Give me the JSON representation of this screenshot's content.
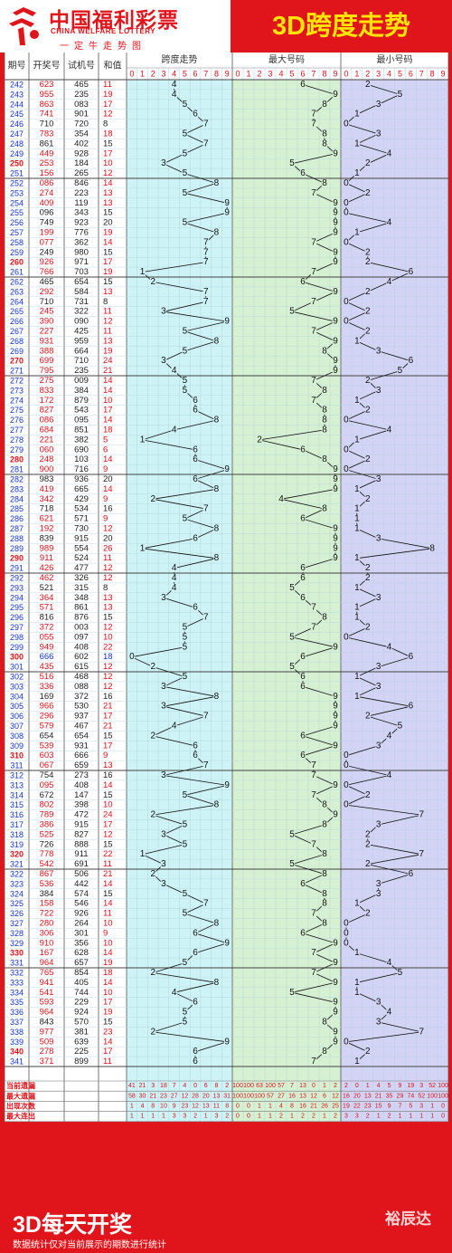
{
  "header": {
    "logo_cn": "中国福利彩票",
    "logo_en": "CHINA WELFARE LOTTERY",
    "logo_motto": "一定牛走势图",
    "title": "3D跨度走势"
  },
  "table": {
    "col_headers": [
      "期号",
      "开奖号",
      "试机号",
      "和值"
    ],
    "sections": [
      "跨度走势",
      "最大号码",
      "最小号码"
    ],
    "digits": [
      "0",
      "1",
      "2",
      "3",
      "4",
      "5",
      "6",
      "7",
      "8",
      "9"
    ]
  },
  "chart_data": {
    "type": "table",
    "colors": {
      "page": "#e0141b",
      "span_bg": "#cdf3f6",
      "max_bg": "#d6f1d2",
      "min_bg": "#d3d3f5",
      "grid": "#b5d4dc",
      "red_text": "#d8141b",
      "blue_text": "#1636c8"
    },
    "rows": [
      {
        "id": "242",
        "draw": "623",
        "test": "465",
        "sum": "11",
        "span": 4,
        "max": 6,
        "min": 2
      },
      {
        "id": "243",
        "draw": "955",
        "test": "235",
        "sum": "19",
        "span": 4,
        "max": 9,
        "min": 5
      },
      {
        "id": "244",
        "draw": "863",
        "test": "083",
        "sum": "17",
        "span": 5,
        "max": 8,
        "min": 3
      },
      {
        "id": "245",
        "draw": "741",
        "test": "901",
        "sum": "12",
        "span": 6,
        "max": 7,
        "min": 1
      },
      {
        "id": "246",
        "draw": "710",
        "test": "720",
        "sum": "8",
        "span": 7,
        "max": 7,
        "min": 0
      },
      {
        "id": "247",
        "draw": "783",
        "test": "354",
        "sum": "18",
        "span": 5,
        "max": 8,
        "min": 3
      },
      {
        "id": "248",
        "draw": "861",
        "test": "402",
        "sum": "15",
        "span": 7,
        "max": 8,
        "min": 1
      },
      {
        "id": "249",
        "draw": "449",
        "test": "928",
        "sum": "17",
        "span": 5,
        "max": 9,
        "min": 4
      },
      {
        "id": "250",
        "draw": "253",
        "test": "184",
        "sum": "10",
        "span": 3,
        "max": 5,
        "min": 2
      },
      {
        "id": "251",
        "draw": "156",
        "test": "265",
        "sum": "12",
        "span": 5,
        "max": 6,
        "min": 1
      },
      {
        "id": "252",
        "draw": "086",
        "test": "846",
        "sum": "14",
        "span": 8,
        "max": 8,
        "min": 0
      },
      {
        "id": "253",
        "draw": "274",
        "test": "223",
        "sum": "13",
        "span": 5,
        "max": 7,
        "min": 2
      },
      {
        "id": "254",
        "draw": "409",
        "test": "119",
        "sum": "13",
        "span": 9,
        "max": 9,
        "min": 0
      },
      {
        "id": "255",
        "draw": "096",
        "test": "343",
        "sum": "15",
        "span": 9,
        "max": 9,
        "min": 0
      },
      {
        "id": "256",
        "draw": "749",
        "test": "923",
        "sum": "20",
        "span": 5,
        "max": 9,
        "min": 4
      },
      {
        "id": "257",
        "draw": "199",
        "test": "776",
        "sum": "19",
        "span": 8,
        "max": 9,
        "min": 1
      },
      {
        "id": "258",
        "draw": "077",
        "test": "362",
        "sum": "14",
        "span": 7,
        "max": 7,
        "min": 0
      },
      {
        "id": "259",
        "draw": "249",
        "test": "980",
        "sum": "15",
        "span": 7,
        "max": 9,
        "min": 2
      },
      {
        "id": "260",
        "draw": "926",
        "test": "971",
        "sum": "17",
        "span": 7,
        "max": 9,
        "min": 2
      },
      {
        "id": "261",
        "draw": "766",
        "test": "703",
        "sum": "19",
        "span": 1,
        "max": 7,
        "min": 6
      },
      {
        "id": "262",
        "draw": "465",
        "test": "654",
        "sum": "15",
        "span": 2,
        "max": 6,
        "min": 4
      },
      {
        "id": "263",
        "draw": "292",
        "test": "584",
        "sum": "13",
        "span": 7,
        "max": 9,
        "min": 2
      },
      {
        "id": "264",
        "draw": "710",
        "test": "731",
        "sum": "8",
        "span": 7,
        "max": 7,
        "min": 0
      },
      {
        "id": "265",
        "draw": "245",
        "test": "322",
        "sum": "11",
        "span": 3,
        "max": 5,
        "min": 2
      },
      {
        "id": "266",
        "draw": "390",
        "test": "090",
        "sum": "12",
        "span": 9,
        "max": 9,
        "min": 0
      },
      {
        "id": "267",
        "draw": "227",
        "test": "425",
        "sum": "11",
        "span": 5,
        "max": 7,
        "min": 2
      },
      {
        "id": "268",
        "draw": "931",
        "test": "959",
        "sum": "13",
        "span": 8,
        "max": 9,
        "min": 1
      },
      {
        "id": "269",
        "draw": "388",
        "test": "664",
        "sum": "19",
        "span": 5,
        "max": 8,
        "min": 3
      },
      {
        "id": "270",
        "draw": "699",
        "test": "710",
        "sum": "24",
        "span": 3,
        "max": 9,
        "min": 6
      },
      {
        "id": "271",
        "draw": "795",
        "test": "235",
        "sum": "21",
        "span": 4,
        "max": 9,
        "min": 5
      },
      {
        "id": "272",
        "draw": "275",
        "test": "009",
        "sum": "14",
        "span": 5,
        "max": 7,
        "min": 2
      },
      {
        "id": "273",
        "draw": "833",
        "test": "384",
        "sum": "14",
        "span": 5,
        "max": 8,
        "min": 3
      },
      {
        "id": "274",
        "draw": "172",
        "test": "879",
        "sum": "10",
        "span": 6,
        "max": 7,
        "min": 1
      },
      {
        "id": "275",
        "draw": "827",
        "test": "543",
        "sum": "17",
        "span": 6,
        "max": 8,
        "min": 2
      },
      {
        "id": "276",
        "draw": "086",
        "test": "095",
        "sum": "14",
        "span": 8,
        "max": 8,
        "min": 0
      },
      {
        "id": "277",
        "draw": "684",
        "test": "851",
        "sum": "18",
        "span": 4,
        "max": 8,
        "min": 4
      },
      {
        "id": "278",
        "draw": "221",
        "test": "382",
        "sum": "5",
        "span": 1,
        "max": 2,
        "min": 1
      },
      {
        "id": "279",
        "draw": "060",
        "test": "690",
        "sum": "6",
        "span": 6,
        "max": 6,
        "min": 0
      },
      {
        "id": "280",
        "draw": "248",
        "test": "103",
        "sum": "14",
        "span": 6,
        "max": 8,
        "min": 2
      },
      {
        "id": "281",
        "draw": "900",
        "test": "716",
        "sum": "9",
        "span": 9,
        "max": 9,
        "min": 0
      },
      {
        "id": "282",
        "draw": "983",
        "test": "936",
        "sum": "20",
        "span": 6,
        "max": 9,
        "min": 3
      },
      {
        "id": "283",
        "draw": "419",
        "test": "665",
        "sum": "14",
        "span": 8,
        "max": 9,
        "min": 1
      },
      {
        "id": "284",
        "draw": "342",
        "test": "429",
        "sum": "9",
        "span": 2,
        "max": 4,
        "min": 2
      },
      {
        "id": "285",
        "draw": "718",
        "test": "534",
        "sum": "16",
        "span": 7,
        "max": 8,
        "min": 1
      },
      {
        "id": "286",
        "draw": "621",
        "test": "571",
        "sum": "9",
        "span": 5,
        "max": 6,
        "min": 1
      },
      {
        "id": "287",
        "draw": "192",
        "test": "730",
        "sum": "12",
        "span": 8,
        "max": 9,
        "min": 1
      },
      {
        "id": "288",
        "draw": "839",
        "test": "915",
        "sum": "20",
        "span": 6,
        "max": 9,
        "min": 3
      },
      {
        "id": "289",
        "draw": "989",
        "test": "554",
        "sum": "26",
        "span": 1,
        "max": 9,
        "min": 8
      },
      {
        "id": "290",
        "draw": "911",
        "test": "524",
        "sum": "11",
        "span": 8,
        "max": 9,
        "min": 1
      },
      {
        "id": "291",
        "draw": "426",
        "test": "477",
        "sum": "12",
        "span": 4,
        "max": 6,
        "min": 2
      },
      {
        "id": "292",
        "draw": "462",
        "test": "326",
        "sum": "12",
        "span": 4,
        "max": 6,
        "min": 2
      },
      {
        "id": "293",
        "draw": "521",
        "test": "315",
        "sum": "8",
        "span": 4,
        "max": 5,
        "min": 1
      },
      {
        "id": "294",
        "draw": "364",
        "test": "348",
        "sum": "13",
        "span": 3,
        "max": 6,
        "min": 3
      },
      {
        "id": "295",
        "draw": "571",
        "test": "861",
        "sum": "13",
        "span": 6,
        "max": 7,
        "min": 1
      },
      {
        "id": "296",
        "draw": "816",
        "test": "876",
        "sum": "15",
        "span": 7,
        "max": 8,
        "min": 1
      },
      {
        "id": "297",
        "draw": "372",
        "test": "003",
        "sum": "12",
        "span": 5,
        "max": 7,
        "min": 2
      },
      {
        "id": "298",
        "draw": "055",
        "test": "097",
        "sum": "10",
        "span": 5,
        "max": 5,
        "min": 0
      },
      {
        "id": "299",
        "draw": "949",
        "test": "408",
        "sum": "22",
        "span": 5,
        "max": 9,
        "min": 4
      },
      {
        "id": "300",
        "draw": "666",
        "test": "602",
        "sum": "18",
        "span": 0,
        "max": 6,
        "min": 6
      },
      {
        "id": "301",
        "draw": "435",
        "test": "615",
        "sum": "12",
        "span": 2,
        "max": 5,
        "min": 3
      },
      {
        "id": "302",
        "draw": "516",
        "test": "468",
        "sum": "12",
        "span": 5,
        "max": 6,
        "min": 1
      },
      {
        "id": "303",
        "draw": "336",
        "test": "088",
        "sum": "12",
        "span": 3,
        "max": 6,
        "min": 3
      },
      {
        "id": "304",
        "draw": "169",
        "test": "372",
        "sum": "16",
        "span": 8,
        "max": 9,
        "min": 1
      },
      {
        "id": "305",
        "draw": "966",
        "test": "530",
        "sum": "21",
        "span": 3,
        "max": 9,
        "min": 6
      },
      {
        "id": "306",
        "draw": "296",
        "test": "937",
        "sum": "17",
        "span": 7,
        "max": 9,
        "min": 2
      },
      {
        "id": "307",
        "draw": "579",
        "test": "467",
        "sum": "21",
        "span": 4,
        "max": 9,
        "min": 5
      },
      {
        "id": "308",
        "draw": "654",
        "test": "654",
        "sum": "15",
        "span": 2,
        "max": 6,
        "min": 4
      },
      {
        "id": "309",
        "draw": "539",
        "test": "931",
        "sum": "17",
        "span": 6,
        "max": 9,
        "min": 3
      },
      {
        "id": "310",
        "draw": "603",
        "test": "666",
        "sum": "9",
        "span": 6,
        "max": 6,
        "min": 0
      },
      {
        "id": "311",
        "draw": "067",
        "test": "659",
        "sum": "13",
        "span": 7,
        "max": 7,
        "min": 0
      },
      {
        "id": "312",
        "draw": "754",
        "test": "273",
        "sum": "16",
        "span": 3,
        "max": 7,
        "min": 4
      },
      {
        "id": "313",
        "draw": "095",
        "test": "408",
        "sum": "14",
        "span": 9,
        "max": 9,
        "min": 0
      },
      {
        "id": "314",
        "draw": "672",
        "test": "147",
        "sum": "15",
        "span": 5,
        "max": 7,
        "min": 2
      },
      {
        "id": "315",
        "draw": "802",
        "test": "398",
        "sum": "10",
        "span": 8,
        "max": 8,
        "min": 0
      },
      {
        "id": "316",
        "draw": "789",
        "test": "472",
        "sum": "24",
        "span": 2,
        "max": 9,
        "min": 7
      },
      {
        "id": "317",
        "draw": "386",
        "test": "915",
        "sum": "17",
        "span": 5,
        "max": 8,
        "min": 3
      },
      {
        "id": "318",
        "draw": "525",
        "test": "827",
        "sum": "12",
        "span": 3,
        "max": 5,
        "min": 2
      },
      {
        "id": "319",
        "draw": "726",
        "test": "888",
        "sum": "15",
        "span": 5,
        "max": 7,
        "min": 2
      },
      {
        "id": "320",
        "draw": "778",
        "test": "911",
        "sum": "22",
        "span": 1,
        "max": 8,
        "min": 7
      },
      {
        "id": "321",
        "draw": "542",
        "test": "691",
        "sum": "11",
        "span": 3,
        "max": 5,
        "min": 2
      },
      {
        "id": "322",
        "draw": "867",
        "test": "506",
        "sum": "21",
        "span": 2,
        "max": 8,
        "min": 6
      },
      {
        "id": "323",
        "draw": "536",
        "test": "442",
        "sum": "14",
        "span": 3,
        "max": 6,
        "min": 3
      },
      {
        "id": "324",
        "draw": "384",
        "test": "574",
        "sum": "15",
        "span": 5,
        "max": 8,
        "min": 3
      },
      {
        "id": "325",
        "draw": "158",
        "test": "546",
        "sum": "14",
        "span": 7,
        "max": 8,
        "min": 1
      },
      {
        "id": "326",
        "draw": "722",
        "test": "926",
        "sum": "11",
        "span": 5,
        "max": 7,
        "min": 2
      },
      {
        "id": "327",
        "draw": "280",
        "test": "264",
        "sum": "10",
        "span": 8,
        "max": 8,
        "min": 0
      },
      {
        "id": "328",
        "draw": "306",
        "test": "301",
        "sum": "9",
        "span": 6,
        "max": 6,
        "min": 0
      },
      {
        "id": "329",
        "draw": "910",
        "test": "356",
        "sum": "10",
        "span": 9,
        "max": 9,
        "min": 0
      },
      {
        "id": "330",
        "draw": "167",
        "test": "628",
        "sum": "14",
        "span": 6,
        "max": 7,
        "min": 1
      },
      {
        "id": "331",
        "draw": "964",
        "test": "657",
        "sum": "19",
        "span": 5,
        "max": 9,
        "min": 4
      },
      {
        "id": "332",
        "draw": "765",
        "test": "854",
        "sum": "18",
        "span": 2,
        "max": 7,
        "min": 5
      },
      {
        "id": "333",
        "draw": "941",
        "test": "405",
        "sum": "14",
        "span": 8,
        "max": 9,
        "min": 1
      },
      {
        "id": "334",
        "draw": "541",
        "test": "744",
        "sum": "10",
        "span": 4,
        "max": 5,
        "min": 1
      },
      {
        "id": "335",
        "draw": "593",
        "test": "229",
        "sum": "17",
        "span": 6,
        "max": 9,
        "min": 3
      },
      {
        "id": "336",
        "draw": "964",
        "test": "924",
        "sum": "19",
        "span": 5,
        "max": 9,
        "min": 4
      },
      {
        "id": "337",
        "draw": "843",
        "test": "570",
        "sum": "15",
        "span": 5,
        "max": 8,
        "min": 3
      },
      {
        "id": "338",
        "draw": "977",
        "test": "381",
        "sum": "23",
        "span": 2,
        "max": 9,
        "min": 7
      },
      {
        "id": "339",
        "draw": "509",
        "test": "639",
        "sum": "14",
        "span": 9,
        "max": 9,
        "min": 0
      },
      {
        "id": "340",
        "draw": "278",
        "test": "225",
        "sum": "17",
        "span": 6,
        "max": 8,
        "min": 2
      },
      {
        "id": "341",
        "draw": "371",
        "test": "899",
        "sum": "11",
        "span": 6,
        "max": 7,
        "min": 1
      }
    ],
    "red_sums": [
      "19",
      "17",
      "19",
      "14",
      "19",
      "24",
      "13",
      "14",
      "11",
      "19",
      "14",
      "5",
      "6",
      "9",
      "26",
      "10",
      "22",
      "18",
      "12",
      "21",
      "22",
      "12",
      "11",
      "23"
    ],
    "stats": [
      {
        "label": "当前遗漏",
        "span": [
          "41",
          "21",
          "3",
          "18",
          "7",
          "4",
          "0",
          "6",
          "8",
          "2"
        ],
        "max": [
          "100",
          "100",
          "63",
          "100",
          "57",
          "7",
          "13",
          "0",
          "1",
          "2"
        ],
        "min": [
          "2",
          "0",
          "1",
          "4",
          "5",
          "9",
          "19",
          "3",
          "52",
          "100"
        ]
      },
      {
        "label": "最大遗漏",
        "span": [
          "58",
          "30",
          "21",
          "23",
          "27",
          "12",
          "28",
          "20",
          "13",
          "31"
        ],
        "max": [
          "100",
          "100",
          "100",
          "57",
          "27",
          "16",
          "13",
          "12",
          "6",
          "12"
        ],
        "min": [
          "16",
          "20",
          "13",
          "21",
          "35",
          "29",
          "74",
          "52",
          "100",
          "100"
        ]
      },
      {
        "label": "出现次数",
        "span": [
          "1",
          "4",
          "8",
          "10",
          "9",
          "23",
          "12",
          "13",
          "11",
          "8"
        ],
        "max": [
          "0",
          "0",
          "1",
          "1",
          "4",
          "8",
          "16",
          "21",
          "26",
          "25"
        ],
        "min": [
          "19",
          "22",
          "23",
          "15",
          "9",
          "7",
          "5",
          "3",
          "1",
          "0"
        ]
      },
      {
        "label": "最大连出",
        "span": [
          "1",
          "1",
          "1",
          "1",
          "3",
          "3",
          "2",
          "1",
          "3",
          "2"
        ],
        "max": [
          "0",
          "0",
          "1",
          "1",
          "2",
          "1",
          "2",
          "2",
          "1",
          "2"
        ],
        "min": [
          "3",
          "3",
          "2",
          "1",
          "2",
          "1",
          "1",
          "1",
          "1",
          "0"
        ]
      }
    ]
  },
  "footer": {
    "title": "3D每天开奖",
    "note": "数据统计仅对当前展示的期数进行统计",
    "brand": "裕辰达"
  }
}
